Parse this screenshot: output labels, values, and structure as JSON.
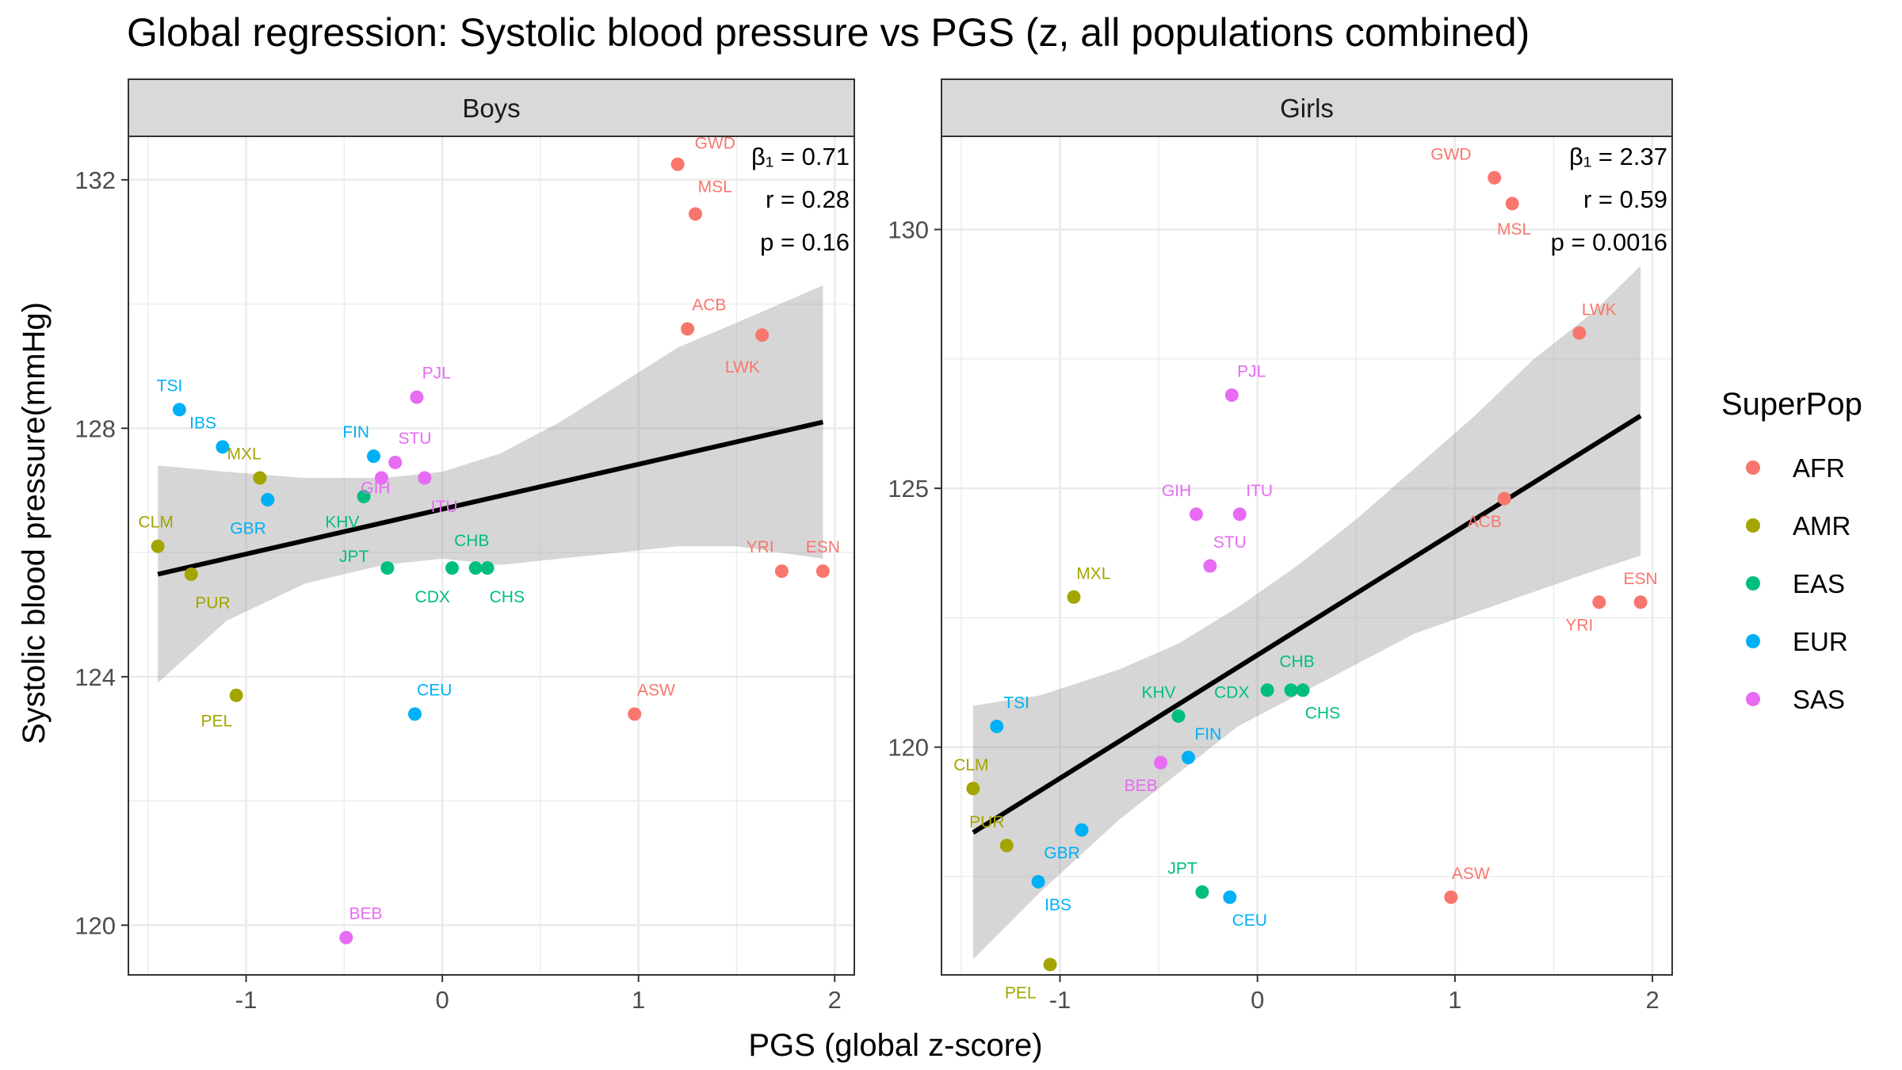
{
  "title": "Global regression: Systolic blood pressure vs PGS (z, all populations combined)",
  "xlabel": "PGS (global z-score)",
  "ylabel": "Systolic blood pressure(mmHg)",
  "legend": {
    "title": "SuperPop",
    "placement": "right",
    "items": [
      {
        "label": "AFR",
        "color": "#F8766D"
      },
      {
        "label": "AMR",
        "color": "#A3A500"
      },
      {
        "label": "EAS",
        "color": "#00BF7D"
      },
      {
        "label": "EUR",
        "color": "#00B0F6"
      },
      {
        "label": "SAS",
        "color": "#E76BF3"
      }
    ]
  },
  "chart_data": [
    {
      "type": "scatter",
      "panel": "Boys",
      "xlim": [
        -1.6,
        2.1
      ],
      "ylim": [
        119.2,
        132.7
      ],
      "xticks": [
        -1,
        0,
        1,
        2
      ],
      "yticks": [
        120,
        124,
        128,
        132
      ],
      "grid": true,
      "stats": {
        "beta": "β₁ = 0.71",
        "r": "r = 0.28",
        "p": "p = 0.16"
      },
      "fit": {
        "x": [
          -1.45,
          1.94
        ],
        "y": [
          125.65,
          128.1
        ]
      },
      "ci_upper": [
        [
          -1.45,
          127.4
        ],
        [
          -1.1,
          127.3
        ],
        [
          -0.7,
          127.2
        ],
        [
          -0.3,
          127.2
        ],
        [
          0.0,
          127.3
        ],
        [
          0.3,
          127.6
        ],
        [
          0.6,
          128.1
        ],
        [
          0.9,
          128.7
        ],
        [
          1.2,
          129.3
        ],
        [
          1.5,
          129.7
        ],
        [
          1.94,
          130.3
        ]
      ],
      "ci_lower": [
        [
          1.94,
          125.9
        ],
        [
          1.5,
          126.1
        ],
        [
          1.2,
          126.1
        ],
        [
          0.9,
          126.0
        ],
        [
          0.6,
          125.9
        ],
        [
          0.3,
          125.8
        ],
        [
          0.0,
          125.9
        ],
        [
          -0.3,
          125.8
        ],
        [
          -0.7,
          125.5
        ],
        [
          -1.1,
          124.9
        ],
        [
          -1.45,
          123.9
        ]
      ],
      "points": [
        {
          "label": "GWD",
          "x": 1.2,
          "y": 132.25,
          "pop": "AFR",
          "lx": 1.39,
          "ly": 132.5
        },
        {
          "label": "MSL",
          "x": 1.29,
          "y": 131.45,
          "pop": "AFR",
          "lx": 1.39,
          "ly": 131.8
        },
        {
          "label": "ACB",
          "x": 1.25,
          "y": 129.6,
          "pop": "AFR",
          "lx": 1.36,
          "ly": 129.9
        },
        {
          "label": "LWK",
          "x": 1.63,
          "y": 129.5,
          "pop": "AFR",
          "lx": 1.53,
          "ly": 128.9
        },
        {
          "label": "YRI",
          "x": 1.73,
          "y": 125.7,
          "pop": "AFR",
          "lx": 1.62,
          "ly": 126.0
        },
        {
          "label": "ESN",
          "x": 1.94,
          "y": 125.7,
          "pop": "AFR",
          "lx": 1.94,
          "ly": 126.0
        },
        {
          "label": "ASW",
          "x": 0.98,
          "y": 123.4,
          "pop": "AFR",
          "lx": 1.09,
          "ly": 123.7
        },
        {
          "label": "CLM",
          "x": -1.45,
          "y": 126.1,
          "pop": "AMR",
          "lx": -1.46,
          "ly": 126.4
        },
        {
          "label": "PUR",
          "x": -1.28,
          "y": 125.65,
          "pop": "AMR",
          "lx": -1.17,
          "ly": 125.1
        },
        {
          "label": "MXL",
          "x": -0.93,
          "y": 127.2,
          "pop": "AMR",
          "lx": -1.01,
          "ly": 127.5
        },
        {
          "label": "PEL",
          "x": -1.05,
          "y": 123.7,
          "pop": "AMR",
          "lx": -1.15,
          "ly": 123.2
        },
        {
          "label": "KHV",
          "x": -0.4,
          "y": 126.9,
          "pop": "EAS",
          "lx": -0.51,
          "ly": 126.4
        },
        {
          "label": "JPT",
          "x": -0.28,
          "y": 125.75,
          "pop": "EAS",
          "lx": -0.45,
          "ly": 125.85
        },
        {
          "label": "CDX",
          "x": 0.05,
          "y": 125.75,
          "pop": "EAS",
          "lx": -0.05,
          "ly": 125.2
        },
        {
          "label": "CHB",
          "x": 0.17,
          "y": 125.75,
          "pop": "EAS",
          "lx": 0.15,
          "ly": 126.1
        },
        {
          "label": "CHS",
          "x": 0.23,
          "y": 125.75,
          "pop": "EAS",
          "lx": 0.33,
          "ly": 125.2
        },
        {
          "label": "TSI",
          "x": -1.34,
          "y": 128.3,
          "pop": "EUR",
          "lx": -1.39,
          "ly": 128.6
        },
        {
          "label": "IBS",
          "x": -1.12,
          "y": 127.7,
          "pop": "EUR",
          "lx": -1.22,
          "ly": 128.0
        },
        {
          "label": "GBR",
          "x": -0.89,
          "y": 126.85,
          "pop": "EUR",
          "lx": -0.99,
          "ly": 126.3
        },
        {
          "label": "FIN",
          "x": -0.35,
          "y": 127.55,
          "pop": "EUR",
          "lx": -0.44,
          "ly": 127.85
        },
        {
          "label": "CEU",
          "x": -0.14,
          "y": 123.4,
          "pop": "EUR",
          "lx": -0.04,
          "ly": 123.7
        },
        {
          "label": "PJL",
          "x": -0.13,
          "y": 128.5,
          "pop": "SAS",
          "lx": -0.03,
          "ly": 128.8
        },
        {
          "label": "STU",
          "x": -0.24,
          "y": 127.45,
          "pop": "SAS",
          "lx": -0.14,
          "ly": 127.75
        },
        {
          "label": "GIH",
          "x": -0.31,
          "y": 127.2,
          "pop": "SAS",
          "lx": -0.34,
          "ly": 126.95
        },
        {
          "label": "ITU",
          "x": -0.09,
          "y": 127.2,
          "pop": "SAS",
          "lx": 0.01,
          "ly": 126.65
        },
        {
          "label": "BEB",
          "x": -0.49,
          "y": 119.8,
          "pop": "SAS",
          "lx": -0.39,
          "ly": 120.1
        }
      ]
    },
    {
      "type": "scatter",
      "panel": "Girls",
      "xlim": [
        -1.6,
        2.1
      ],
      "ylim": [
        115.6,
        131.8
      ],
      "xticks": [
        -1,
        0,
        1,
        2
      ],
      "yticks": [
        120,
        125,
        130
      ],
      "grid": true,
      "stats": {
        "beta": "β₁ = 2.37",
        "r": "r = 0.59",
        "p": "p = 0.0016"
      },
      "fit": {
        "x": [
          -1.44,
          1.94
        ],
        "y": [
          118.35,
          126.4
        ]
      },
      "ci_upper": [
        [
          -1.44,
          120.8
        ],
        [
          -1.1,
          121.0
        ],
        [
          -0.7,
          121.5
        ],
        [
          -0.4,
          122.0
        ],
        [
          -0.1,
          122.7
        ],
        [
          0.2,
          123.5
        ],
        [
          0.5,
          124.4
        ],
        [
          0.8,
          125.4
        ],
        [
          1.1,
          126.4
        ],
        [
          1.4,
          127.5
        ],
        [
          1.7,
          128.4
        ],
        [
          1.94,
          129.3
        ]
      ],
      "ci_lower": [
        [
          1.94,
          123.7
        ],
        [
          1.7,
          123.4
        ],
        [
          1.4,
          123.0
        ],
        [
          1.1,
          122.6
        ],
        [
          0.8,
          122.2
        ],
        [
          0.5,
          121.6
        ],
        [
          0.2,
          121.0
        ],
        [
          -0.1,
          120.4
        ],
        [
          -0.4,
          119.5
        ],
        [
          -0.7,
          118.6
        ],
        [
          -1.1,
          117.2
        ],
        [
          -1.44,
          115.9
        ]
      ],
      "points": [
        {
          "label": "GWD",
          "x": 1.2,
          "y": 131.0,
          "pop": "AFR",
          "lx": 0.98,
          "ly": 131.35
        },
        {
          "label": "MSL",
          "x": 1.29,
          "y": 130.5,
          "pop": "AFR",
          "lx": 1.3,
          "ly": 129.9
        },
        {
          "label": "LWK",
          "x": 1.63,
          "y": 128.0,
          "pop": "AFR",
          "lx": 1.73,
          "ly": 128.35
        },
        {
          "label": "ACB",
          "x": 1.25,
          "y": 124.8,
          "pop": "AFR",
          "lx": 1.15,
          "ly": 124.25
        },
        {
          "label": "YRI",
          "x": 1.73,
          "y": 122.8,
          "pop": "AFR",
          "lx": 1.63,
          "ly": 122.25
        },
        {
          "label": "ESN",
          "x": 1.94,
          "y": 122.8,
          "pop": "AFR",
          "lx": 1.94,
          "ly": 123.15
        },
        {
          "label": "ASW",
          "x": 0.98,
          "y": 117.1,
          "pop": "AFR",
          "lx": 1.08,
          "ly": 117.45
        },
        {
          "label": "MXL",
          "x": -0.93,
          "y": 122.9,
          "pop": "AMR",
          "lx": -0.83,
          "ly": 123.25
        },
        {
          "label": "CLM",
          "x": -1.44,
          "y": 119.2,
          "pop": "AMR",
          "lx": -1.45,
          "ly": 119.55
        },
        {
          "label": "PUR",
          "x": -1.27,
          "y": 118.1,
          "pop": "AMR",
          "lx": -1.37,
          "ly": 118.45
        },
        {
          "label": "PEL",
          "x": -1.05,
          "y": 115.8,
          "pop": "AMR",
          "lx": -1.2,
          "ly": 115.15
        },
        {
          "label": "KHV",
          "x": -0.4,
          "y": 120.6,
          "pop": "EAS",
          "lx": -0.5,
          "ly": 120.95
        },
        {
          "label": "CDX",
          "x": 0.05,
          "y": 121.1,
          "pop": "EAS",
          "lx": -0.13,
          "ly": 120.95
        },
        {
          "label": "CHB",
          "x": 0.17,
          "y": 121.1,
          "pop": "EAS",
          "lx": 0.2,
          "ly": 121.55
        },
        {
          "label": "CHS",
          "x": 0.23,
          "y": 121.1,
          "pop": "EAS",
          "lx": 0.33,
          "ly": 120.55
        },
        {
          "label": "JPT",
          "x": -0.28,
          "y": 117.2,
          "pop": "EAS",
          "lx": -0.38,
          "ly": 117.55
        },
        {
          "label": "TSI",
          "x": -1.32,
          "y": 120.4,
          "pop": "EUR",
          "lx": -1.22,
          "ly": 120.75
        },
        {
          "label": "FIN",
          "x": -0.35,
          "y": 119.8,
          "pop": "EUR",
          "lx": -0.25,
          "ly": 120.15
        },
        {
          "label": "GBR",
          "x": -0.89,
          "y": 118.4,
          "pop": "EUR",
          "lx": -0.99,
          "ly": 117.85
        },
        {
          "label": "IBS",
          "x": -1.11,
          "y": 117.4,
          "pop": "EUR",
          "lx": -1.01,
          "ly": 116.85
        },
        {
          "label": "CEU",
          "x": -0.14,
          "y": 117.1,
          "pop": "EUR",
          "lx": -0.04,
          "ly": 116.55
        },
        {
          "label": "PJL",
          "x": -0.13,
          "y": 126.8,
          "pop": "SAS",
          "lx": -0.03,
          "ly": 127.15
        },
        {
          "label": "GIH",
          "x": -0.31,
          "y": 124.5,
          "pop": "SAS",
          "lx": -0.41,
          "ly": 124.85
        },
        {
          "label": "ITU",
          "x": -0.09,
          "y": 124.5,
          "pop": "SAS",
          "lx": 0.01,
          "ly": 124.85
        },
        {
          "label": "STU",
          "x": -0.24,
          "y": 123.5,
          "pop": "SAS",
          "lx": -0.14,
          "ly": 123.85
        },
        {
          "label": "BEB",
          "x": -0.49,
          "y": 119.7,
          "pop": "SAS",
          "lx": -0.59,
          "ly": 119.15
        }
      ]
    }
  ]
}
